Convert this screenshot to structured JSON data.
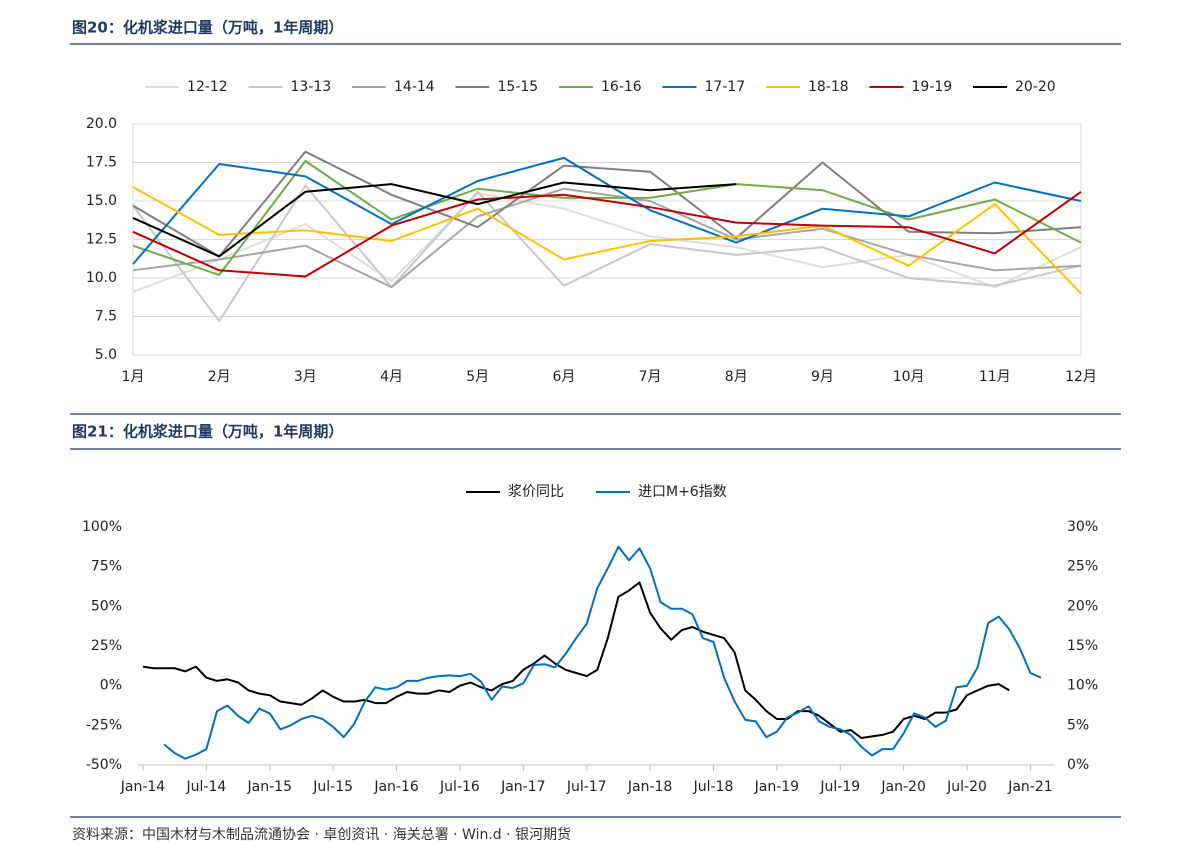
{
  "chart_data": [
    {
      "type": "line",
      "title": "图20：化机浆进口量（万吨，1年周期）",
      "categories": [
        "1月",
        "2月",
        "3月",
        "4月",
        "5月",
        "6月",
        "7月",
        "8月",
        "9月",
        "10月",
        "11月",
        "12月"
      ],
      "series": [
        {
          "name": "12-12",
          "color": "#dedede",
          "values": [
            9.1,
            11.2,
            13.5,
            9.8,
            15.5,
            14.5,
            12.7,
            12.0,
            10.7,
            11.5,
            9.4,
            12.0
          ]
        },
        {
          "name": "13-13",
          "color": "#c8c8c8",
          "values": [
            14.7,
            7.2,
            16.0,
            9.4,
            15.6,
            9.5,
            12.2,
            11.5,
            12.0,
            10.0,
            9.5,
            10.8
          ]
        },
        {
          "name": "14-14",
          "color": "#a6a6a6",
          "values": [
            10.5,
            11.2,
            12.1,
            9.4,
            14.0,
            15.8,
            15.0,
            12.5,
            13.2,
            11.5,
            10.5,
            10.8
          ]
        },
        {
          "name": "15-15",
          "color": "#808080",
          "values": [
            14.7,
            11.4,
            18.2,
            15.4,
            13.3,
            17.3,
            16.9,
            12.6,
            17.5,
            13.0,
            12.9,
            13.3
          ]
        },
        {
          "name": "16-16",
          "color": "#70ad47",
          "values": [
            12.1,
            10.2,
            17.6,
            13.8,
            15.8,
            15.2,
            15.2,
            16.1,
            15.7,
            13.8,
            15.1,
            12.3
          ]
        },
        {
          "name": "17-17",
          "color": "#0070c0",
          "values": [
            10.9,
            17.4,
            16.6,
            13.5,
            16.3,
            17.8,
            14.4,
            12.3,
            14.5,
            14.0,
            16.2,
            15.0
          ]
        },
        {
          "name": "18-18",
          "color": "#ffc000",
          "values": [
            15.9,
            12.8,
            13.1,
            12.4,
            14.5,
            11.2,
            12.4,
            12.7,
            13.4,
            10.8,
            14.8,
            9.0
          ]
        },
        {
          "name": "19-19",
          "color": "#c00000",
          "values": [
            13.0,
            10.5,
            10.1,
            13.4,
            15.1,
            15.4,
            14.6,
            13.6,
            13.4,
            13.3,
            11.6,
            15.6
          ]
        },
        {
          "name": "20-20",
          "color": "#000000",
          "values": [
            13.9,
            11.4,
            15.6,
            16.1,
            14.8,
            16.2,
            15.7,
            16.1,
            null,
            null,
            null,
            null
          ]
        }
      ],
      "ylim": [
        5,
        20
      ],
      "yticks": [
        {
          "value": 5,
          "label": "5.0"
        },
        7.5,
        {
          "value": 10,
          "label": "10.0"
        },
        12.5,
        {
          "value": 15,
          "label": "15.0"
        },
        17.5,
        {
          "value": 20,
          "label": "20.0"
        }
      ],
      "grid": true,
      "legend": "top"
    },
    {
      "type": "line",
      "title": "图21：化机浆进口量（万吨，1年周期）",
      "categories": [
        "Jan-14",
        null,
        null,
        null,
        null,
        null,
        "Jul-14",
        null,
        null,
        null,
        null,
        null,
        "Jan-15",
        null,
        null,
        null,
        null,
        null,
        "Jul-15",
        null,
        null,
        null,
        null,
        null,
        "Jan-16",
        null,
        null,
        null,
        null,
        null,
        "Jul-16",
        null,
        null,
        null,
        null,
        null,
        "Jan-17",
        null,
        null,
        null,
        null,
        null,
        "Jul-17",
        null,
        null,
        null,
        null,
        null,
        "Jan-18",
        null,
        null,
        null,
        null,
        null,
        "Jul-18",
        null,
        null,
        null,
        null,
        null,
        "Jan-19",
        null,
        null,
        null,
        null,
        null,
        "Jul-19",
        null,
        null,
        null,
        null,
        null,
        "Jan-20",
        null,
        null,
        null,
        null,
        null,
        "Jul-20",
        null,
        null,
        null,
        null,
        null,
        "Jan-21",
        null
      ],
      "series": [
        {
          "name": "浆价同比",
          "color": "#000000",
          "axis": "y",
          "values": [
            12,
            11,
            11,
            11,
            9,
            12,
            5,
            3,
            4,
            2,
            -3,
            -5,
            -6,
            -10,
            -11,
            -12,
            -8,
            -3,
            -7,
            -10,
            -10,
            -9,
            -11,
            -11,
            -7,
            -4,
            -5,
            -5,
            -3,
            -4,
            0,
            2,
            -1,
            -3,
            1,
            3,
            10,
            14,
            19,
            14,
            10,
            8,
            6,
            10,
            30,
            56,
            60,
            65,
            46,
            36,
            29,
            35,
            37,
            34,
            32,
            30,
            21,
            -3,
            -9,
            -16,
            -21,
            -21,
            -16,
            -16,
            -19,
            -24,
            -29,
            -28,
            -33,
            -32,
            -31,
            -29,
            -21,
            -19,
            -21,
            -17,
            -17,
            -15,
            -6,
            -3,
            0,
            1,
            -3,
            null,
            null,
            null
          ]
        },
        {
          "name": "进口M+6指数",
          "color": "#0070c0",
          "axis": "y2",
          "values": [
            null,
            null,
            2.6,
            1.5,
            0.8,
            1.3,
            2.0,
            6.8,
            7.5,
            6.2,
            5.3,
            7.1,
            6.5,
            4.5,
            5.0,
            5.8,
            6.2,
            5.8,
            4.8,
            3.5,
            5.2,
            8.0,
            9.8,
            9.5,
            9.8,
            10.6,
            10.6,
            11.0,
            11.2,
            11.3,
            11.2,
            11.5,
            10.5,
            8.2,
            9.9,
            9.7,
            10.3,
            12.6,
            12.7,
            12.3,
            14.0,
            16.0,
            17.8,
            22.3,
            24.8,
            27.5,
            25.8,
            27.3,
            24.8,
            20.5,
            19.7,
            19.7,
            19.0,
            16.0,
            15.5,
            11.0,
            8.0,
            5.7,
            5.5,
            3.5,
            4.2,
            6.0,
            6.6,
            7.4,
            5.5,
            4.8,
            4.5,
            3.8,
            2.3,
            1.2,
            2.0,
            2.0,
            4.0,
            6.5,
            6.0,
            4.8,
            5.6,
            9.8,
            10.0,
            12.3,
            17.9,
            18.7,
            17.1,
            14.7,
            11.6,
            11.0
          ]
        }
      ],
      "ylim": [
        -50,
        100
      ],
      "yticks": [
        {
          "value": -50,
          "label": "-50%"
        },
        {
          "value": -25,
          "label": "-25%"
        },
        {
          "value": 0,
          "label": "0%"
        },
        {
          "value": 25,
          "label": "25%"
        },
        {
          "value": 50,
          "label": "50%"
        },
        {
          "value": 75,
          "label": "75%"
        },
        {
          "value": 100,
          "label": "100%"
        }
      ],
      "y2lim": [
        0,
        30
      ],
      "y2ticks": [
        {
          "value": 0,
          "label": "0%"
        },
        {
          "value": 5,
          "label": "5%"
        },
        {
          "value": 10,
          "label": "10%"
        },
        {
          "value": 15,
          "label": "15%"
        },
        {
          "value": 20,
          "label": "20%"
        },
        {
          "value": 25,
          "label": "25%"
        },
        {
          "value": 30,
          "label": "30%"
        }
      ],
      "grid": false,
      "legend": "top"
    }
  ],
  "source": "资料来源：中国木材与木制品流通协会 · 卓创资讯 · 海关总署 · Win.d · 银河期货"
}
